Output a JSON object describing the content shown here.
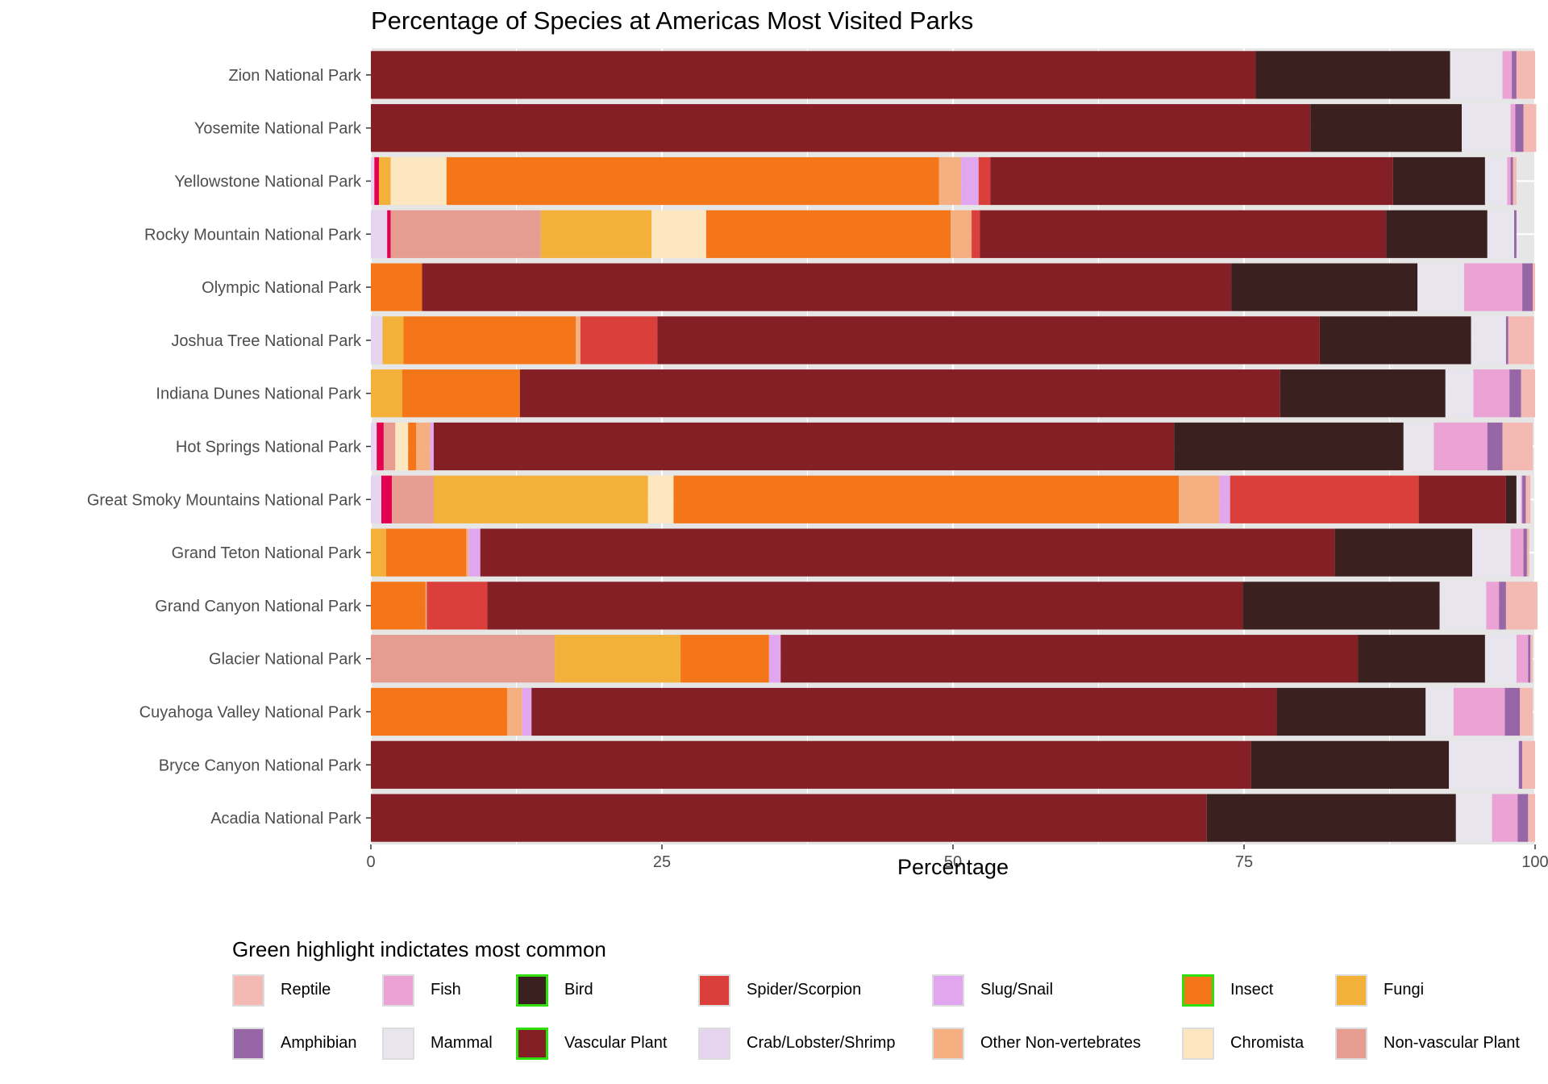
{
  "chart_data": {
    "type": "bar",
    "orientation": "horizontal",
    "stacked": true,
    "title": "Percentage of Species at Americas Most Visited Parks",
    "xlabel": "Percentage",
    "ylabel": "",
    "xlim": [
      0,
      100
    ],
    "x_ticks": [
      "0",
      "25",
      "50",
      "75",
      "100"
    ],
    "grid": true,
    "legend_position": "bottom",
    "legend_title": "Green highlight indictates most common",
    "categories": [
      "Acadia National Park",
      "Bryce Canyon National Park",
      "Cuyahoga Valley National Park",
      "Glacier National Park",
      "Grand Canyon National Park",
      "Grand Teton National Park",
      "Great Smoky Mountains National Park",
      "Hot Springs National Park",
      "Indiana Dunes National Park",
      "Joshua Tree National Park",
      "Olympic National Park",
      "Rocky Mountain National Park",
      "Yellowstone National Park",
      "Yosemite National Park",
      "Zion National Park"
    ],
    "stack_order_from_left": [
      "Crab/Lobster/Shrimp",
      "Non-vascular Plant",
      "Fungi",
      "Chromista",
      "Insect",
      "Other Non-vertebrates",
      "Slug/Snail",
      "Spider/Scorpion",
      "Vascular Plant",
      "Bird",
      "Mammal",
      "Fish",
      "Amphibian",
      "Reptile"
    ],
    "series": [
      {
        "name": "Reptile",
        "color": "#F4B9B2",
        "highlight": false,
        "values": [
          0.6,
          1.1,
          1.1,
          0.2,
          2.7,
          0.2,
          0.4,
          2.6,
          1.2,
          2.2,
          0.2,
          0.0,
          0.3,
          1.1,
          1.6
        ]
      },
      {
        "name": "Fish",
        "color": "#EBA3D6",
        "highlight": false,
        "values": [
          2.2,
          0.0,
          4.4,
          1.0,
          1.1,
          1.1,
          0.1,
          4.6,
          3.1,
          0.0,
          5.0,
          0.0,
          0.3,
          0.4,
          0.8
        ]
      },
      {
        "name": "Bird",
        "color": "#3A211F",
        "highlight": true,
        "values": [
          21.4,
          17.0,
          12.8,
          10.9,
          16.9,
          11.8,
          0.9,
          19.7,
          14.2,
          13.0,
          16.0,
          8.7,
          7.9,
          13.0,
          16.7
        ]
      },
      {
        "name": "Spider/Scorpion",
        "color": "#DB3F3B",
        "highlight": false,
        "values": [
          0.0,
          0.0,
          0.0,
          0.0,
          5.2,
          0.0,
          16.2,
          0.0,
          0.0,
          6.6,
          0.0,
          0.7,
          1.0,
          0.0,
          0.0
        ]
      },
      {
        "name": "Slug/Snail",
        "color": "#E1A6EE",
        "highlight": false,
        "values": [
          0.0,
          0.0,
          0.8,
          1.0,
          0.0,
          1.0,
          0.9,
          0.3,
          0.0,
          0.0,
          0.0,
          0.0,
          1.5,
          0.0,
          0.0
        ]
      },
      {
        "name": "Insect",
        "color": "#F47619",
        "highlight": true,
        "values": [
          0.0,
          0.0,
          11.7,
          7.6,
          4.7,
          6.9,
          43.4,
          0.7,
          10.1,
          14.8,
          4.4,
          21.0,
          42.3,
          0.0,
          0.0
        ]
      },
      {
        "name": "Fungi",
        "color": "#F3B139",
        "highlight": false,
        "values": [
          0.0,
          0.0,
          0.0,
          10.8,
          0.0,
          1.3,
          18.4,
          0.0,
          2.7,
          1.8,
          0.0,
          9.5,
          1.0,
          0.0,
          0.0
        ]
      },
      {
        "name": "Amphibian",
        "color": "#9766A6",
        "highlight": false,
        "values": [
          0.9,
          0.3,
          1.3,
          0.2,
          0.6,
          0.3,
          0.3,
          1.3,
          1.0,
          0.2,
          0.9,
          0.2,
          0.2,
          0.7,
          0.4
        ]
      },
      {
        "name": "Mammal",
        "color": "#E9E5EE",
        "highlight": false,
        "values": [
          3.1,
          6.0,
          2.4,
          2.7,
          4.0,
          3.3,
          0.4,
          2.6,
          2.4,
          3.0,
          4.0,
          2.3,
          1.9,
          4.2,
          4.5
        ]
      },
      {
        "name": "Vascular Plant",
        "color": "#851F26",
        "highlight": true,
        "values": [
          71.8,
          75.6,
          64.0,
          49.6,
          64.9,
          73.4,
          7.5,
          63.6,
          65.3,
          56.9,
          69.5,
          34.9,
          34.6,
          80.7,
          76.0
        ]
      },
      {
        "name": "Crab/Lobster/Shrimp",
        "color": "#E6D5EE",
        "highlight": false,
        "values": [
          0.0,
          0.0,
          0.0,
          0.0,
          0.0,
          0.0,
          0.9,
          0.5,
          0.0,
          1.0,
          0.0,
          1.4,
          0.3,
          0.0,
          0.0
        ]
      },
      {
        "name": "Other Non-vertebrates",
        "color": "#F6AF80",
        "highlight": false,
        "values": [
          0.0,
          0.0,
          1.3,
          0.0,
          0.1,
          0.2,
          3.5,
          1.2,
          0.0,
          0.4,
          0.0,
          1.8,
          1.9,
          0.0,
          0.0
        ]
      },
      {
        "name": "Chromista",
        "color": "#FDE7C0",
        "highlight": false,
        "values": [
          0.0,
          0.0,
          0.0,
          0.0,
          0.0,
          0.0,
          2.2,
          1.1,
          0.0,
          0.0,
          0.0,
          4.7,
          4.8,
          0.0,
          0.0
        ]
      },
      {
        "name": "Non-vascular Plant",
        "color": "#E69C91",
        "highlight": false,
        "values": [
          0.0,
          0.0,
          0.0,
          15.8,
          0.0,
          0.0,
          3.6,
          1.0,
          0.0,
          0.0,
          0.0,
          12.9,
          0.0,
          0.0,
          0.0
        ]
      }
    ],
    "extra_segments": [
      {
        "category": "Great Smoky Mountains National Park",
        "color": "#E2004F",
        "value": 0.9,
        "after": "Crab/Lobster/Shrimp"
      },
      {
        "category": "Hot Springs National Park",
        "color": "#E2004F",
        "value": 0.6,
        "after": "Crab/Lobster/Shrimp"
      },
      {
        "category": "Rocky Mountain National Park",
        "color": "#E2004F",
        "value": 0.3,
        "after": "Crab/Lobster/Shrimp"
      },
      {
        "category": "Yellowstone National Park",
        "color": "#E2004F",
        "value": 0.4,
        "after": "Crab/Lobster/Shrimp"
      }
    ]
  },
  "legend": {
    "title": "Green highlight indictates most common",
    "row1": [
      {
        "label": "Reptile",
        "color": "#F4B9B2",
        "highlight": false
      },
      {
        "label": "Fish",
        "color": "#EBA3D6",
        "highlight": false
      },
      {
        "label": "Bird",
        "color": "#3A211F",
        "highlight": true
      },
      {
        "label": "Spider/Scorpion",
        "color": "#DB3F3B",
        "highlight": false
      },
      {
        "label": "Slug/Snail",
        "color": "#E1A6EE",
        "highlight": false
      },
      {
        "label": "Insect",
        "color": "#F47619",
        "highlight": true
      },
      {
        "label": "Fungi",
        "color": "#F3B139",
        "highlight": false
      }
    ],
    "row2": [
      {
        "label": "Amphibian",
        "color": "#9766A6",
        "highlight": false
      },
      {
        "label": "Mammal",
        "color": "#E9E5EE",
        "highlight": false
      },
      {
        "label": "Vascular Plant",
        "color": "#851F26",
        "highlight": true
      },
      {
        "label": "Crab/Lobster/Shrimp",
        "color": "#E6D5EE",
        "highlight": false
      },
      {
        "label": "Other Non-vertebrates",
        "color": "#F6AF80",
        "highlight": false
      },
      {
        "label": "Chromista",
        "color": "#FDE7C0",
        "highlight": false
      },
      {
        "label": "Non-vascular Plant",
        "color": "#E69C91",
        "highlight": false
      }
    ]
  }
}
